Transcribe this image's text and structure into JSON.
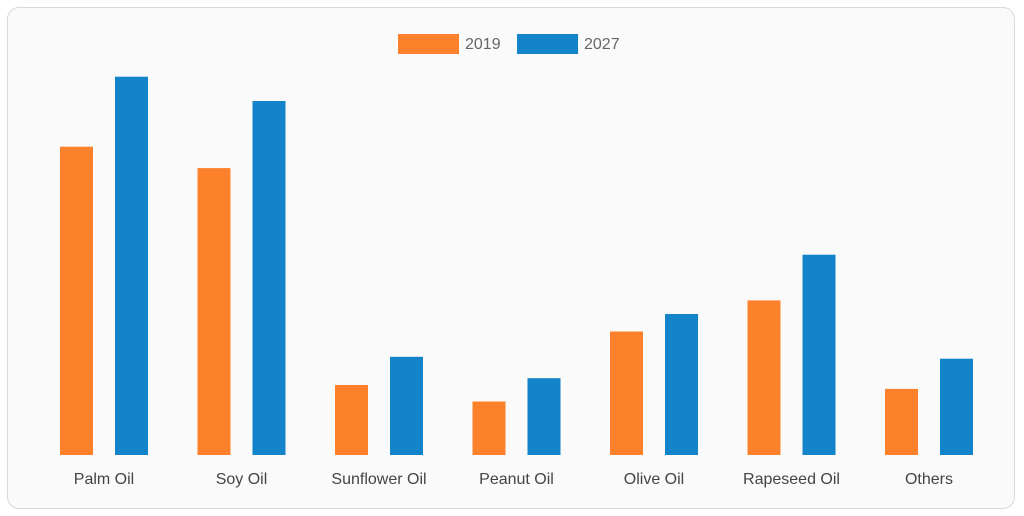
{
  "chart_data": {
    "type": "bar",
    "categories": [
      "Palm Oil",
      "Soy Oil",
      "Sunflower Oil",
      "Peanut Oil",
      "Olive Oil",
      "Rapeseed Oil",
      "Others"
    ],
    "series": [
      {
        "name": "2019",
        "color": "#fd812b",
        "values": [
          317,
          295,
          72,
          55,
          127,
          159,
          68
        ]
      },
      {
        "name": "2027",
        "color": "#1384c9",
        "values": [
          389,
          364,
          101,
          79,
          145,
          206,
          99
        ]
      }
    ],
    "title": "",
    "xlabel": "",
    "ylabel": "",
    "ylim": [
      0,
      400
    ],
    "grid": false,
    "legend": "top-center"
  }
}
